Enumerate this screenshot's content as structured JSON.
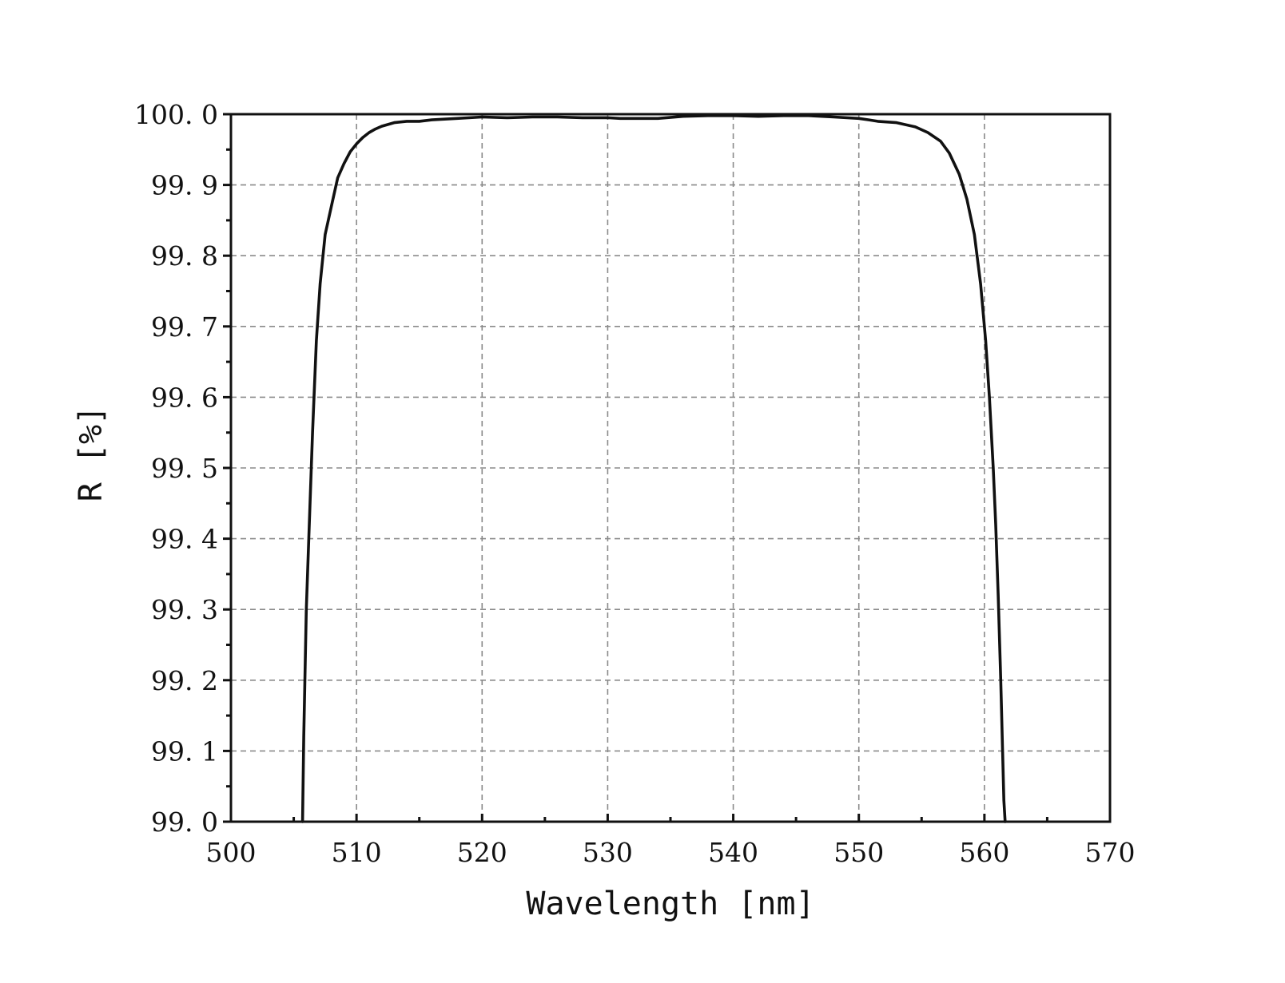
{
  "chart_data": {
    "type": "line",
    "xlabel": "Wavelength [nm]",
    "ylabel": "R [%]",
    "xlim": [
      500,
      570
    ],
    "ylim": [
      99.0,
      100.0
    ],
    "x_ticks": [
      500,
      510,
      520,
      530,
      540,
      550,
      560,
      570
    ],
    "x_tick_labels": [
      "500",
      "510",
      "520",
      "530",
      "540",
      "550",
      "560",
      "570"
    ],
    "y_ticks": [
      99.0,
      99.1,
      99.2,
      99.3,
      99.4,
      99.5,
      99.6,
      99.7,
      99.8,
      99.9,
      100.0
    ],
    "y_tick_labels": [
      "99. 0",
      "99. 1",
      "99. 2",
      "99. 3",
      "99. 4",
      "99. 5",
      "99. 6",
      "99. 7",
      "99. 8",
      "99. 9",
      "100. 0"
    ],
    "x_minor_step": 5,
    "y_minor_step": 0.05,
    "grid": true,
    "line_color": "#111111",
    "series": [
      {
        "x": [
          505.7,
          505.8,
          506.0,
          506.2,
          506.5,
          506.8,
          507.1,
          507.5,
          508.0,
          508.5,
          509.0,
          509.5,
          510.0,
          510.5,
          511.0,
          511.5,
          512.0,
          513.0,
          514.0,
          515.0,
          516.0,
          518.0,
          520.0,
          522.0,
          524.0,
          526.0,
          528.0,
          530.0,
          531.0,
          532.0,
          534.0,
          536.0,
          538.0,
          540.0,
          542.0,
          544.0,
          546.0,
          548.0,
          550.0,
          550.8,
          551.5,
          553.0,
          554.5,
          555.5,
          556.5,
          557.2,
          558.0,
          558.6,
          559.2,
          559.7,
          560.1,
          560.4,
          560.7,
          560.9,
          561.1,
          561.3,
          561.45,
          561.55,
          561.65
        ],
        "y": [
          99.0,
          99.12,
          99.3,
          99.4,
          99.55,
          99.68,
          99.76,
          99.83,
          99.87,
          99.91,
          99.93,
          99.947,
          99.958,
          99.967,
          99.974,
          99.979,
          99.983,
          99.988,
          99.99,
          99.99,
          99.992,
          99.994,
          99.996,
          99.995,
          99.996,
          99.996,
          99.995,
          99.995,
          99.994,
          99.994,
          99.994,
          99.997,
          99.998,
          99.998,
          99.997,
          99.998,
          99.998,
          99.996,
          99.994,
          99.992,
          99.99,
          99.988,
          99.982,
          99.974,
          99.962,
          99.945,
          99.915,
          99.88,
          99.83,
          99.76,
          99.68,
          99.6,
          99.5,
          99.42,
          99.32,
          99.2,
          99.1,
          99.03,
          99.0
        ]
      }
    ]
  }
}
